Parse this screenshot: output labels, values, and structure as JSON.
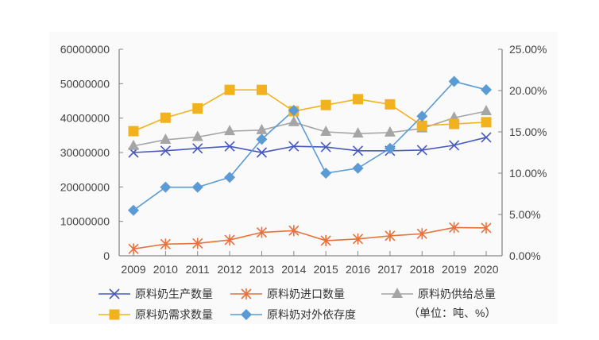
{
  "chart_data": {
    "type": "line",
    "categories": [
      "2009",
      "2010",
      "2011",
      "2012",
      "2013",
      "2014",
      "2015",
      "2016",
      "2017",
      "2018",
      "2019",
      "2020"
    ],
    "y_left": {
      "range": [
        0,
        60000000
      ],
      "ticks": [
        "0",
        "10000000",
        "20000000",
        "30000000",
        "40000000",
        "50000000",
        "60000000"
      ]
    },
    "y_right": {
      "range": [
        0,
        25
      ],
      "ticks": [
        "0.00%",
        "5.00%",
        "10.00%",
        "15.00%",
        "20.00%",
        "25.00%"
      ]
    },
    "grid": false,
    "legend_position": "bottom",
    "unit_note": "（单位：吨、%）",
    "series": [
      {
        "name": "原料奶生产数量",
        "axis": "left",
        "marker": "x",
        "color": "#4759c0",
        "values": [
          30000000,
          30500000,
          31200000,
          31800000,
          30000000,
          31800000,
          31600000,
          30500000,
          30500000,
          30700000,
          32100000,
          34400000
        ]
      },
      {
        "name": "原料奶进口数量",
        "axis": "left",
        "marker": "asterisk",
        "color": "#e8703a",
        "values": [
          2000000,
          3400000,
          3600000,
          4600000,
          6800000,
          7300000,
          4400000,
          4900000,
          5800000,
          6400000,
          8200000,
          8100000
        ]
      },
      {
        "name": "原料奶供给总量",
        "axis": "left",
        "marker": "triangle",
        "color": "#a5a5a5",
        "values": [
          31900000,
          33700000,
          34500000,
          36200000,
          36500000,
          38800000,
          36000000,
          35500000,
          35800000,
          37000000,
          40100000,
          42000000
        ]
      },
      {
        "name": "原料奶需求数量",
        "axis": "left",
        "marker": "square",
        "color": "#f2b21e",
        "values": [
          36200000,
          40100000,
          42800000,
          48200000,
          48200000,
          42000000,
          43800000,
          45500000,
          44000000,
          37800000,
          38300000,
          38800000
        ]
      },
      {
        "name": "原料奶对外依存度",
        "axis": "right",
        "marker": "diamond",
        "color": "#5b9bd5",
        "values": [
          5.5,
          8.3,
          8.3,
          9.5,
          14.1,
          17.6,
          10.0,
          10.6,
          13.0,
          16.9,
          21.1,
          20.1
        ]
      }
    ]
  }
}
